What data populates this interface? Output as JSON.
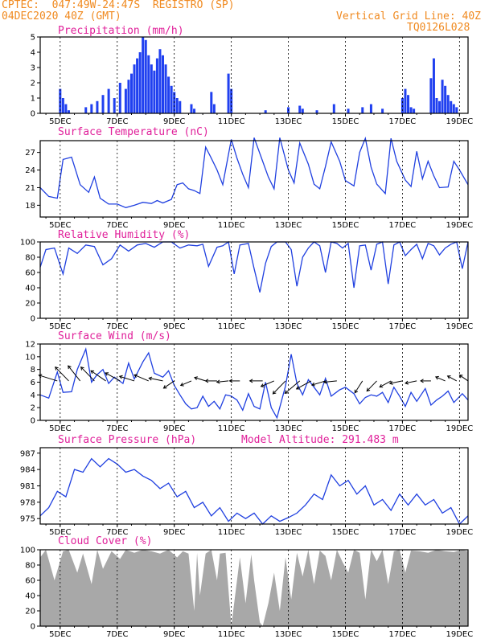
{
  "header": {
    "line1": "CPTEC:  047:49W-24:47S  REGISTRO (SP)",
    "line2_left": "04DEC2020 40Z (GMT)",
    "line2_right": "Vertical Grid Line: 40Z",
    "line3_right": "TQ0126L028"
  },
  "colors": {
    "header": "#f08a20",
    "title": "#e0209a",
    "line": "#2040e0",
    "bar": "#2040f0",
    "cloud": "#a8a8a8",
    "arrow": "#000000"
  },
  "xaxis_ticks": [
    "5DEC",
    "7DEC",
    "9DEC",
    "11DEC",
    "13DEC",
    "15DEC",
    "17DEC",
    "19DEC"
  ],
  "model_altitude": "Model Altitude: 291.483 m",
  "chart_data": [
    {
      "type": "bar",
      "title": "Precipitation (mm/h)",
      "ylim": [
        0,
        5
      ],
      "yticks": [
        "0",
        "1",
        "2",
        "3",
        "4",
        "5"
      ],
      "x_days": [
        4.7,
        4.8,
        4.9,
        5.0,
        5.6,
        5.8,
        6.0,
        6.2,
        6.4,
        6.6,
        6.8,
        7.0,
        7.1,
        7.2,
        7.3,
        7.4,
        7.5,
        7.6,
        7.7,
        7.8,
        7.9,
        8.0,
        8.1,
        8.2,
        8.3,
        8.4,
        8.5,
        8.6,
        8.7,
        8.8,
        8.9,
        9.3,
        9.4,
        10.0,
        10.1,
        10.6,
        10.7,
        11.9,
        12.7,
        13.1,
        13.2,
        13.7,
        14.3,
        14.8,
        15.3,
        15.6,
        16.0,
        16.7,
        16.8,
        16.9,
        17.0,
        17.1,
        17.7,
        17.8,
        17.9,
        18.0,
        18.1,
        18.2,
        18.3,
        18.4,
        18.5,
        18.6
      ],
      "values": [
        1.6,
        1.0,
        0.6,
        0.2,
        0.4,
        0.6,
        0.8,
        1.2,
        1.6,
        1.0,
        2.0,
        1.6,
        2.2,
        2.6,
        3.2,
        3.6,
        4.0,
        5.0,
        4.8,
        3.8,
        3.2,
        2.8,
        3.6,
        4.2,
        3.8,
        3.2,
        2.4,
        1.8,
        1.4,
        1.0,
        0.8,
        0.6,
        0.3,
        1.4,
        0.6,
        2.6,
        1.6,
        0.2,
        0.4,
        0.5,
        0.3,
        0.2,
        0.6,
        0.3,
        0.4,
        0.6,
        0.3,
        1.0,
        1.6,
        1.2,
        0.4,
        0.3,
        2.3,
        3.6,
        1.0,
        0.8,
        2.2,
        1.8,
        1.2,
        0.8,
        0.6,
        0.4
      ]
    },
    {
      "type": "line",
      "title": "Surface Temperature (nC)",
      "ylim": [
        16,
        29
      ],
      "yticks": [
        "18",
        "21",
        "24",
        "27"
      ],
      "x_days": [
        4.0,
        4.3,
        4.6,
        4.8,
        5.1,
        5.4,
        5.7,
        5.9,
        6.1,
        6.4,
        6.7,
        7.0,
        7.3,
        7.6,
        7.9,
        8.1,
        8.3,
        8.6,
        8.8,
        9.0,
        9.2,
        9.4,
        9.6,
        9.8,
        10.0,
        10.2,
        10.4,
        10.7,
        10.9,
        11.1,
        11.3,
        11.5,
        11.8,
        12.0,
        12.2,
        12.4,
        12.7,
        12.9,
        13.1,
        13.4,
        13.6,
        13.8,
        14.0,
        14.2,
        14.5,
        14.7,
        15.0,
        15.2,
        15.4,
        15.6,
        15.8,
        16.1,
        16.3,
        16.5,
        16.8,
        17.0,
        17.2,
        17.4,
        17.6,
        17.8,
        18.0,
        18.3,
        18.5,
        18.7,
        19.0
      ],
      "values": [
        21.0,
        19.5,
        19.2,
        25.8,
        26.2,
        21.5,
        20.2,
        22.8,
        19.2,
        18.2,
        18.2,
        17.6,
        18.0,
        18.5,
        18.3,
        18.8,
        18.4,
        19.0,
        21.5,
        21.8,
        20.8,
        20.5,
        20.0,
        27.9,
        26.0,
        24.0,
        21.5,
        29.2,
        26.0,
        23.3,
        21.0,
        29.5,
        25.5,
        22.8,
        20.8,
        29.5,
        24.0,
        21.8,
        28.6,
        25.0,
        21.6,
        20.8,
        24.6,
        28.8,
        25.5,
        22.2,
        21.3,
        27.0,
        29.4,
        24.5,
        21.6,
        20.0,
        29.4,
        25.5,
        22.3,
        21.2,
        27.2,
        22.5,
        25.5,
        23.0,
        21.0,
        21.1,
        25.5,
        24.0,
        21.5
      ]
    },
    {
      "type": "line",
      "title": "Relative Humidity (%)",
      "ylim": [
        0,
        100
      ],
      "yticks": [
        "0",
        "20",
        "40",
        "60",
        "80",
        "100"
      ],
      "x_days": [
        4.0,
        4.2,
        4.5,
        4.8,
        5.0,
        5.3,
        5.6,
        5.9,
        6.2,
        6.5,
        6.8,
        7.1,
        7.4,
        7.7,
        8.0,
        8.3,
        8.6,
        8.9,
        9.2,
        9.5,
        9.7,
        9.9,
        10.2,
        10.4,
        10.6,
        10.8,
        11.0,
        11.3,
        11.5,
        11.7,
        11.9,
        12.1,
        12.3,
        12.6,
        12.8,
        13.0,
        13.2,
        13.4,
        13.6,
        13.8,
        14.0,
        14.2,
        14.4,
        14.6,
        14.8,
        15.0,
        15.2,
        15.4,
        15.6,
        15.8,
        16.0,
        16.2,
        16.4,
        16.6,
        16.8,
        17.0,
        17.2,
        17.4,
        17.6,
        17.8,
        18.0,
        18.2,
        18.4,
        18.6,
        18.8,
        19.0
      ],
      "values": [
        67,
        90,
        92,
        58,
        92,
        85,
        96,
        94,
        70,
        78,
        96,
        88,
        96,
        98,
        93,
        100,
        100,
        92,
        96,
        95,
        97,
        68,
        93,
        95,
        100,
        58,
        96,
        98,
        65,
        34,
        72,
        94,
        100,
        100,
        90,
        42,
        80,
        92,
        100,
        95,
        60,
        100,
        98,
        92,
        98,
        40,
        95,
        96,
        63,
        97,
        100,
        45,
        96,
        100,
        82,
        90,
        97,
        78,
        98,
        95,
        83,
        92,
        97,
        100,
        65,
        100
      ]
    },
    {
      "type": "line",
      "title": "Surface Wind (m/s)",
      "ylim": [
        0,
        12
      ],
      "yticks": [
        "0",
        "2",
        "4",
        "6",
        "8",
        "10",
        "12"
      ],
      "x_days": [
        4.0,
        4.3,
        4.6,
        4.8,
        5.1,
        5.3,
        5.6,
        5.8,
        6.0,
        6.2,
        6.4,
        6.6,
        6.9,
        7.1,
        7.3,
        7.6,
        7.8,
        8.0,
        8.3,
        8.5,
        8.7,
        8.9,
        9.1,
        9.3,
        9.5,
        9.7,
        9.9,
        10.1,
        10.3,
        10.5,
        10.7,
        10.9,
        11.1,
        11.3,
        11.5,
        11.7,
        11.9,
        12.1,
        12.3,
        12.6,
        12.8,
        13.0,
        13.2,
        13.4,
        13.6,
        13.8,
        14.0,
        14.2,
        14.5,
        14.7,
        15.0,
        15.2,
        15.4,
        15.6,
        15.8,
        16.0,
        16.2,
        16.4,
        16.6,
        16.8,
        17.0,
        17.2,
        17.5,
        17.7,
        17.9,
        18.1,
        18.3,
        18.5,
        18.8,
        19.0
      ],
      "values": [
        4.0,
        3.5,
        7.6,
        4.4,
        4.5,
        8.0,
        11.2,
        6.0,
        7.2,
        8.0,
        5.8,
        6.8,
        5.8,
        9.0,
        6.5,
        9.2,
        10.6,
        7.4,
        6.8,
        7.8,
        5.5,
        4.0,
        2.6,
        1.8,
        2.0,
        3.8,
        2.2,
        3.0,
        1.8,
        4.0,
        3.8,
        3.2,
        1.6,
        4.2,
        2.2,
        1.8,
        6.0,
        2.0,
        0.4,
        5.4,
        10.4,
        5.8,
        4.0,
        6.4,
        5.2,
        4.0,
        6.6,
        3.8,
        4.8,
        5.2,
        4.2,
        2.6,
        3.6,
        4.0,
        3.8,
        4.4,
        2.8,
        5.2,
        3.8,
        2.2,
        4.4,
        3.0,
        5.0,
        2.4,
        3.2,
        3.8,
        4.6,
        2.8,
        4.2,
        3.2
      ],
      "arrows": [
        {
          "x": 4.6,
          "dir": -0.3,
          "len": 1.0
        },
        {
          "x": 5.0,
          "dir": -0.8,
          "len": 1.0
        },
        {
          "x": 5.4,
          "dir": -0.9,
          "len": 1.0
        },
        {
          "x": 5.9,
          "dir": -0.8,
          "len": 1.0
        },
        {
          "x": 6.3,
          "dir": -0.6,
          "len": 0.9
        },
        {
          "x": 6.8,
          "dir": -0.5,
          "len": 0.8
        },
        {
          "x": 7.3,
          "dir": -0.3,
          "len": 0.7
        },
        {
          "x": 7.8,
          "dir": -0.4,
          "len": 0.7
        },
        {
          "x": 8.3,
          "dir": -0.2,
          "len": 0.6
        },
        {
          "x": 8.7,
          "dir": 0.6,
          "len": 0.5
        },
        {
          "x": 9.3,
          "dir": 0.4,
          "len": 0.4
        },
        {
          "x": 9.8,
          "dir": -0.3,
          "len": 0.4
        },
        {
          "x": 10.2,
          "dir": 0.0,
          "len": 0.4
        },
        {
          "x": 10.6,
          "dir": 0.1,
          "len": 0.4
        },
        {
          "x": 11.0,
          "dir": 0.0,
          "len": 0.3
        },
        {
          "x": 11.8,
          "dir": 0.0,
          "len": 0.5
        },
        {
          "x": 12.2,
          "dir": 0.4,
          "len": 0.6
        },
        {
          "x": 12.6,
          "dir": 0.8,
          "len": 0.9
        },
        {
          "x": 13.1,
          "dir": 0.7,
          "len": 1.0
        },
        {
          "x": 13.5,
          "dir": 0.5,
          "len": 0.8
        },
        {
          "x": 14.0,
          "dir": 0.3,
          "len": 0.6
        },
        {
          "x": 14.4,
          "dir": 0.1,
          "len": 0.5
        },
        {
          "x": 15.3,
          "dir": 1.0,
          "len": 0.6
        },
        {
          "x": 15.8,
          "dir": 0.8,
          "len": 0.6
        },
        {
          "x": 16.3,
          "dir": 0.5,
          "len": 0.5
        },
        {
          "x": 16.7,
          "dir": 0.2,
          "len": 0.5
        },
        {
          "x": 17.2,
          "dir": 0.2,
          "len": 0.4
        },
        {
          "x": 17.7,
          "dir": 0.0,
          "len": 0.3
        },
        {
          "x": 18.2,
          "dir": -0.4,
          "len": 0.3
        },
        {
          "x": 18.6,
          "dir": -0.5,
          "len": 0.3
        },
        {
          "x": 19.0,
          "dir": -0.6,
          "len": 0.3
        }
      ]
    },
    {
      "type": "line",
      "title": "Surface Pressure (hPa)",
      "ylim": [
        974,
        988
      ],
      "yticks": [
        "975",
        "978",
        "981",
        "984",
        "987"
      ],
      "x_days": [
        4.0,
        4.3,
        4.6,
        4.9,
        5.2,
        5.5,
        5.8,
        6.1,
        6.4,
        6.7,
        7.0,
        7.3,
        7.6,
        7.9,
        8.2,
        8.5,
        8.8,
        9.1,
        9.4,
        9.7,
        10.0,
        10.3,
        10.6,
        10.9,
        11.2,
        11.5,
        11.8,
        12.1,
        12.4,
        12.7,
        13.0,
        13.3,
        13.6,
        13.9,
        14.2,
        14.5,
        14.8,
        15.1,
        15.4,
        15.7,
        16.0,
        16.3,
        16.6,
        16.9,
        17.2,
        17.5,
        17.8,
        18.1,
        18.4,
        18.7,
        19.0
      ],
      "values": [
        975.5,
        977,
        980,
        979,
        984,
        983.5,
        986,
        984.5,
        986,
        985,
        983.5,
        984,
        982.8,
        982,
        980.5,
        981.5,
        979,
        980,
        977,
        978,
        975.5,
        977,
        974.5,
        976,
        975,
        976,
        974,
        975.5,
        974.5,
        975.2,
        976,
        977.5,
        979.5,
        978.5,
        983,
        981,
        982,
        979.5,
        981,
        977.5,
        978.5,
        976.5,
        979.5,
        977.5,
        979.5,
        977.5,
        978.5,
        976,
        977,
        974,
        975.5
      ]
    },
    {
      "type": "area",
      "title": "Cloud Cover (%)",
      "ylim": [
        0,
        100
      ],
      "yticks": [
        "0",
        "20",
        "40",
        "60",
        "80",
        "100"
      ],
      "x_days": [
        4.0,
        4.2,
        4.5,
        4.8,
        5.0,
        5.3,
        5.5,
        5.8,
        6.0,
        6.2,
        6.5,
        6.8,
        7.0,
        7.3,
        7.6,
        7.9,
        8.2,
        8.5,
        8.8,
        9.0,
        9.2,
        9.4,
        9.5,
        9.6,
        9.8,
        10.0,
        10.2,
        10.3,
        10.5,
        10.7,
        10.8,
        11.0,
        11.2,
        11.4,
        11.5,
        11.7,
        11.8,
        12.0,
        12.2,
        12.4,
        12.6,
        12.8,
        13.0,
        13.2,
        13.4,
        13.6,
        13.8,
        14.0,
        14.2,
        14.4,
        14.6,
        14.8,
        15.0,
        15.2,
        15.4,
        15.6,
        15.8,
        16.0,
        16.2,
        16.4,
        16.6,
        16.8,
        17.0,
        17.3,
        17.6,
        17.9,
        18.2,
        18.5,
        18.8,
        19.0
      ],
      "values": [
        90,
        100,
        60,
        98,
        100,
        70,
        95,
        55,
        100,
        75,
        98,
        88,
        100,
        96,
        100,
        98,
        95,
        100,
        90,
        98,
        95,
        20,
        96,
        40,
        95,
        100,
        60,
        95,
        96,
        0,
        30,
        90,
        30,
        94,
        60,
        5,
        0,
        30,
        70,
        20,
        90,
        35,
        96,
        65,
        100,
        55,
        99,
        92,
        60,
        100,
        84,
        70,
        100,
        96,
        35,
        100,
        85,
        100,
        55,
        98,
        100,
        70,
        99,
        98,
        96,
        100,
        98,
        97,
        100,
        98
      ]
    }
  ]
}
